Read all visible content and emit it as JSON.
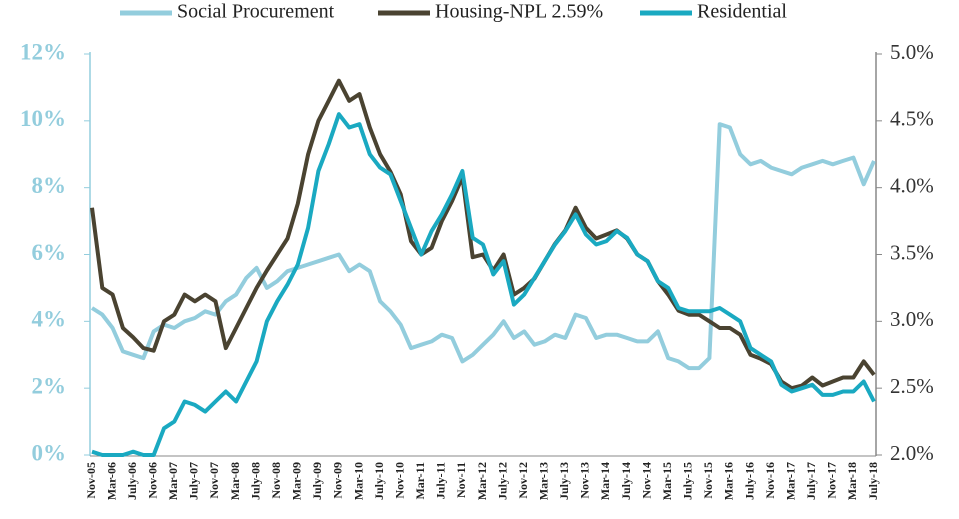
{
  "chart_data": {
    "type": "line",
    "legend": "top",
    "categories": [
      "Nov-05",
      null,
      "Mar-06",
      null,
      "July-06",
      null,
      "Nov-06",
      null,
      "Mar-07",
      null,
      "July-07",
      null,
      "Nov-07",
      null,
      "Mar-08",
      null,
      "July-08",
      null,
      "Nov-08",
      null,
      "Mar-09",
      null,
      "July-09",
      null,
      "Nov-09",
      null,
      "Mar-10",
      null,
      "July-10",
      null,
      "Nov-10",
      null,
      "Mar-11",
      null,
      "July-11",
      null,
      "Nov-11",
      null,
      "Mar-12",
      null,
      "July-12",
      null,
      "Nov-12",
      null,
      "Mar-13",
      null,
      "July-13",
      null,
      "Nov-13",
      null,
      "Mar-14",
      null,
      "July-14",
      null,
      "Nov-14",
      null,
      "Mar-15",
      null,
      "July-15",
      null,
      "Nov-15",
      null,
      "Mar-16",
      null,
      "July-16",
      null,
      "Nov-16",
      null,
      "Mar-17",
      null,
      "July-17",
      null,
      "Nov-17",
      null,
      "Mar-18",
      null,
      "July-18"
    ],
    "series": [
      {
        "name": "Social Procurement",
        "color": "#93cddd",
        "axis": "y",
        "values": [
          4.4,
          4.2,
          3.8,
          3.1,
          3.0,
          2.9,
          3.7,
          3.9,
          3.8,
          4.0,
          4.1,
          4.3,
          4.2,
          4.6,
          4.8,
          5.3,
          5.6,
          5.0,
          5.2,
          5.5,
          5.6,
          5.7,
          5.8,
          5.9,
          6.0,
          5.5,
          5.7,
          5.5,
          4.6,
          4.3,
          3.9,
          3.2,
          3.3,
          3.4,
          3.6,
          3.5,
          2.8,
          3.0,
          3.3,
          3.6,
          4.0,
          3.5,
          3.7,
          3.3,
          3.4,
          3.6,
          3.5,
          4.2,
          4.1,
          3.5,
          3.6,
          3.6,
          3.5,
          3.4,
          3.4,
          3.7,
          2.9,
          2.8,
          2.6,
          2.6,
          2.9,
          9.9,
          9.8,
          9.0,
          8.7,
          8.8,
          8.6,
          8.5,
          8.4,
          8.6,
          8.7,
          8.8,
          8.7,
          8.8,
          8.9,
          8.1,
          8.8
        ]
      },
      {
        "name": "Housing-NPL 2.59%",
        "color": "#4a4331",
        "axis": "y2",
        "values": [
          3.85,
          3.25,
          3.2,
          2.95,
          2.88,
          2.8,
          2.78,
          3.0,
          3.05,
          3.2,
          3.15,
          3.2,
          3.15,
          2.8,
          2.95,
          3.1,
          3.25,
          3.38,
          3.5,
          3.62,
          3.88,
          4.25,
          4.5,
          4.65,
          4.8,
          4.65,
          4.7,
          4.45,
          4.25,
          4.12,
          3.95,
          3.6,
          3.5,
          3.55,
          3.75,
          3.9,
          4.08,
          3.48,
          3.5,
          3.38,
          3.5,
          3.2,
          3.25,
          3.32,
          3.45,
          3.58,
          3.68,
          3.85,
          3.7,
          3.62,
          3.65,
          3.68,
          3.62,
          3.5,
          3.45,
          3.3,
          3.2,
          3.08,
          3.05,
          3.05,
          3.0,
          2.95,
          2.95,
          2.9,
          2.75,
          2.72,
          2.68,
          2.55,
          2.5,
          2.52,
          2.58,
          2.52,
          2.55,
          2.58,
          2.58,
          2.7,
          2.6
        ]
      },
      {
        "name": "Residential",
        "color": "#1aa9c1",
        "axis": "y",
        "values": [
          0.1,
          0,
          0,
          0,
          0.1,
          0,
          0,
          0.8,
          1.0,
          1.6,
          1.5,
          1.3,
          1.6,
          1.9,
          1.6,
          2.2,
          2.8,
          4.0,
          4.6,
          5.1,
          5.7,
          6.8,
          8.5,
          9.3,
          10.2,
          9.8,
          9.9,
          9.0,
          8.6,
          8.4,
          7.6,
          6.8,
          6.0,
          6.7,
          7.2,
          7.8,
          8.5,
          6.5,
          6.3,
          5.4,
          5.8,
          4.5,
          4.8,
          5.3,
          5.8,
          6.3,
          6.7,
          7.2,
          6.6,
          6.3,
          6.4,
          6.7,
          6.5,
          6.0,
          5.8,
          5.2,
          5.0,
          4.4,
          4.3,
          4.3,
          4.3,
          4.4,
          4.2,
          4.0,
          3.2,
          3.0,
          2.8,
          2.1,
          1.9,
          2.0,
          2.1,
          1.8,
          1.8,
          1.9,
          1.9,
          2.2,
          1.6
        ]
      }
    ],
    "ylim": [
      0,
      12
    ],
    "yticks": [
      {
        "value": 0,
        "label": "0%"
      },
      {
        "value": 2,
        "label": "2%"
      },
      {
        "value": 4,
        "label": "4%"
      },
      {
        "value": 6,
        "label": "6%"
      },
      {
        "value": 8,
        "label": "8%"
      },
      {
        "value": 10,
        "label": "10%"
      },
      {
        "value": 12,
        "label": "12%"
      }
    ],
    "y2lim": [
      2,
      5
    ],
    "y2ticks": [
      {
        "value": 2,
        "label": "2.0%"
      },
      {
        "value": 2.5,
        "label": "2.5%"
      },
      {
        "value": 3,
        "label": "3.0%"
      },
      {
        "value": 3.5,
        "label": "3.5%"
      },
      {
        "value": 4,
        "label": "4.0%"
      },
      {
        "value": 4.5,
        "label": "4.5%"
      },
      {
        "value": 5,
        "label": "5.0%"
      }
    ]
  }
}
